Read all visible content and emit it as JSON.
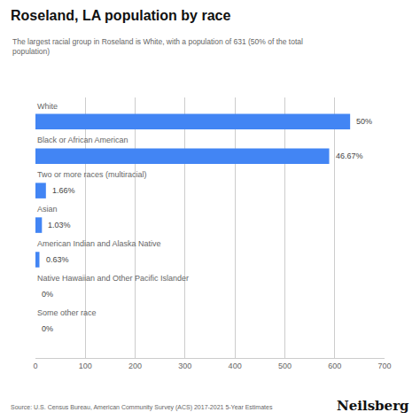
{
  "chart_data": {
    "type": "bar",
    "orientation": "horizontal",
    "title": "Roseland, LA population by race",
    "subtitle": "The largest racial group in Roseland is White, with a population of 631 (50% of the total\npopulation)",
    "categories": [
      "White",
      "Black or African American",
      "Two or more races (multiracial)",
      "Asian",
      "American Indian and Alaska Native",
      "Native Hawaiian and Other Pacific Islander",
      "Some other race"
    ],
    "values": [
      631,
      589,
      21,
      13,
      8,
      0,
      0
    ],
    "percentages": [
      "50%",
      "46.67%",
      "1.66%",
      "1.03%",
      "0.63%",
      "0%",
      "0%"
    ],
    "color": "#4285f4",
    "xlim": [
      0,
      700
    ],
    "xticks": [
      0,
      100,
      200,
      300,
      400,
      500,
      600,
      700
    ],
    "grid": true,
    "tick_labels": "x",
    "source": "Source: U.S. Census Bureau, American Community Survey (ACS) 2017-2021 5-Year Estimates",
    "brand": "Neilsberg"
  }
}
